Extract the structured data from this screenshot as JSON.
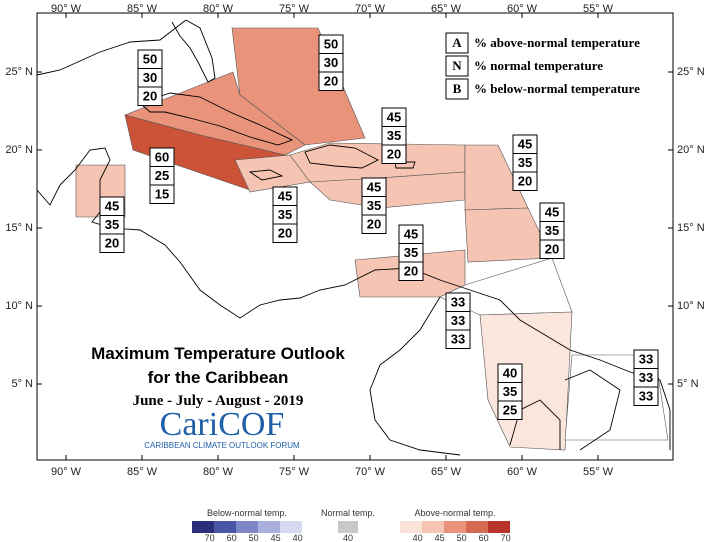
{
  "map": {
    "lon_labels": [
      "90° W",
      "85° W",
      "80° W",
      "75° W",
      "70° W",
      "65° W",
      "60° W",
      "55° W"
    ],
    "lat_labels": [
      "25° N",
      "20° N",
      "15° N",
      "10° N",
      "5° N"
    ],
    "regions": [
      {
        "values": [
          50,
          30,
          20
        ],
        "color": "#e8937a"
      },
      {
        "values": [
          50,
          30,
          20
        ],
        "color": "#e8937a"
      },
      {
        "values": [
          60,
          25,
          15
        ],
        "color": "#cc5337"
      },
      {
        "values": [
          45,
          35,
          20
        ],
        "color": "#f5c4b2"
      },
      {
        "values": [
          45,
          35,
          20
        ],
        "color": "#f5c4b2"
      },
      {
        "values": [
          45,
          35,
          20
        ],
        "color": "#f5c4b2"
      },
      {
        "values": [
          45,
          35,
          20
        ],
        "color": "#f5c4b2"
      },
      {
        "values": [
          45,
          35,
          20
        ],
        "color": "#f5c4b2"
      },
      {
        "values": [
          45,
          35,
          20
        ],
        "color": "#f5c4b2"
      },
      {
        "values": [
          45,
          35,
          20
        ],
        "color": "#f5c4b2"
      },
      {
        "values": [
          33,
          33,
          33
        ],
        "color": "#ffffff"
      },
      {
        "values": [
          40,
          35,
          25
        ],
        "color": "#fbe6de"
      },
      {
        "values": [
          33,
          33,
          33
        ],
        "color": "#ffffff"
      }
    ]
  },
  "key": [
    {
      "letter": "A",
      "text": "% above-normal temperature"
    },
    {
      "letter": "N",
      "text": "% normal temperature"
    },
    {
      "letter": "B",
      "text": "% below-normal temperature"
    }
  ],
  "title": {
    "line1": "Maximum Temperature Outlook",
    "line2": "for the Caribbean",
    "subtitle": "June - July - August - 2019"
  },
  "logo": {
    "name": "CariCOF",
    "tagline": "CARIBBEAN CLIMATE OUTLOOK FORUM"
  },
  "colorbar": {
    "below": {
      "label": "Below-normal temp.",
      "ticks": [
        70,
        60,
        50,
        45,
        40
      ],
      "colors": [
        "#2b2f7a",
        "#4b55a8",
        "#7d86c6",
        "#aab0dd",
        "#d6d9ef"
      ]
    },
    "normal": {
      "label": "Normal temp.",
      "ticks": [
        40
      ],
      "colors": [
        "#c8c8c8"
      ]
    },
    "above": {
      "label": "Above-normal temp.",
      "ticks": [
        40,
        45,
        50,
        60,
        70
      ],
      "colors": [
        "#fbe2d8",
        "#f5c4b2",
        "#e8937a",
        "#d66a50",
        "#b8332a"
      ]
    }
  }
}
